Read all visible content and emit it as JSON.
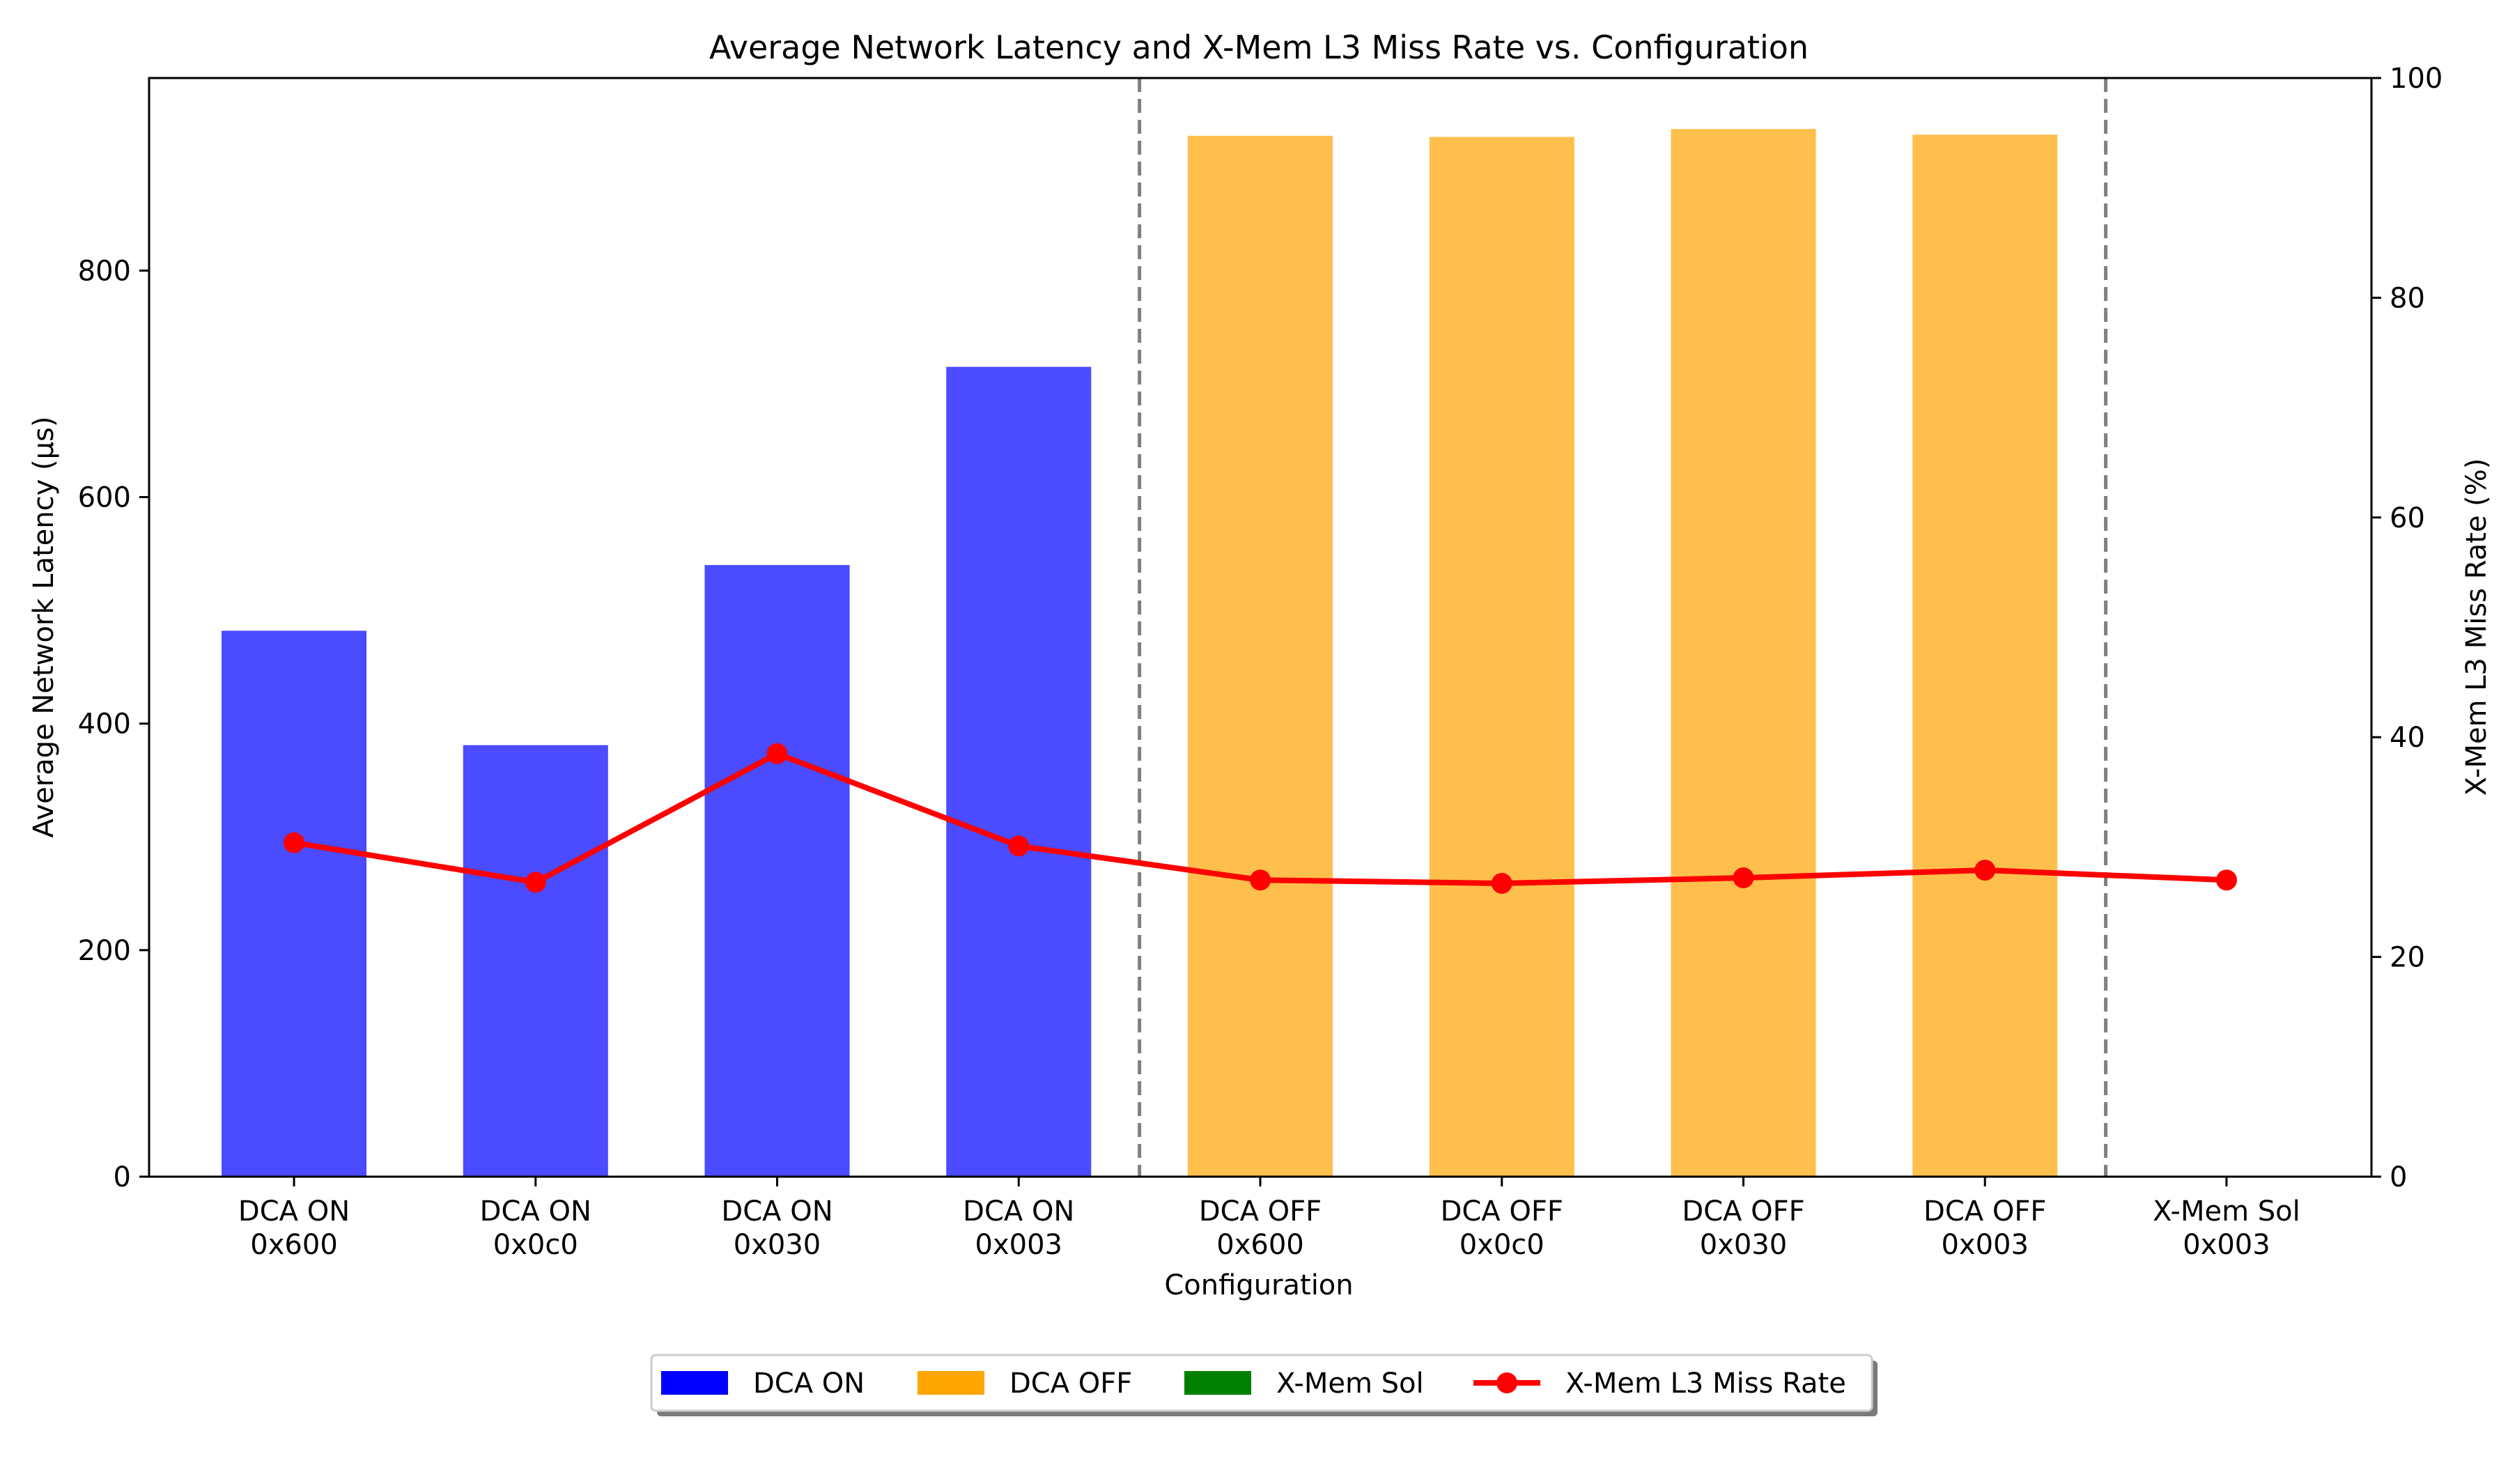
{
  "chart_data": {
    "type": "bar",
    "title": "Average Network Latency and X-Mem L3 Miss Rate vs. Configuration",
    "xlabel": "Configuration",
    "ylabel": "Average Network Latency (µs)",
    "y2label": "X-Mem L3 Miss Rate (%)",
    "categories": [
      [
        "DCA ON",
        "0x600"
      ],
      [
        "DCA ON",
        "0x0c0"
      ],
      [
        "DCA ON",
        "0x030"
      ],
      [
        "DCA ON",
        "0x003"
      ],
      [
        "DCA OFF",
        "0x600"
      ],
      [
        "DCA OFF",
        "0x0c0"
      ],
      [
        "DCA OFF",
        "0x030"
      ],
      [
        "DCA OFF",
        "0x003"
      ],
      [
        "X-Mem Sol",
        "0x003"
      ]
    ],
    "bar_groups": [
      "DCA ON",
      "DCA ON",
      "DCA ON",
      "DCA ON",
      "DCA OFF",
      "DCA OFF",
      "DCA OFF",
      "DCA OFF",
      "X-Mem Sol"
    ],
    "latency_values": [
      482,
      381,
      540,
      715,
      919,
      918,
      925,
      920,
      null
    ],
    "miss_rate_series": {
      "name": "X-Mem L3 Miss Rate",
      "values": [
        30.4,
        26.8,
        38.5,
        30.1,
        27.0,
        26.7,
        27.2,
        27.9,
        27.0
      ]
    },
    "ylim": [
      0,
      970
    ],
    "y2lim": [
      0,
      100
    ],
    "yticks": [
      0,
      200,
      400,
      600,
      800
    ],
    "y2ticks": [
      0,
      20,
      40,
      60,
      80,
      100
    ],
    "group_dividers_after": [
      3,
      7
    ],
    "grid": false,
    "legend": {
      "position": "bottom-center",
      "entries": [
        {
          "label": "DCA ON",
          "kind": "bar",
          "color": "#0000ff"
        },
        {
          "label": "DCA OFF",
          "kind": "bar",
          "color": "#ffa500"
        },
        {
          "label": "X-Mem Sol",
          "kind": "bar",
          "color": "#008000"
        },
        {
          "label": "X-Mem L3 Miss Rate",
          "kind": "line",
          "color": "#ff0000"
        }
      ]
    },
    "colors": {
      "dca_on_bar": "#4b4bff",
      "dca_off_bar": "#ffbf4d",
      "line": "#ff0000",
      "divider": "#808080"
    }
  }
}
